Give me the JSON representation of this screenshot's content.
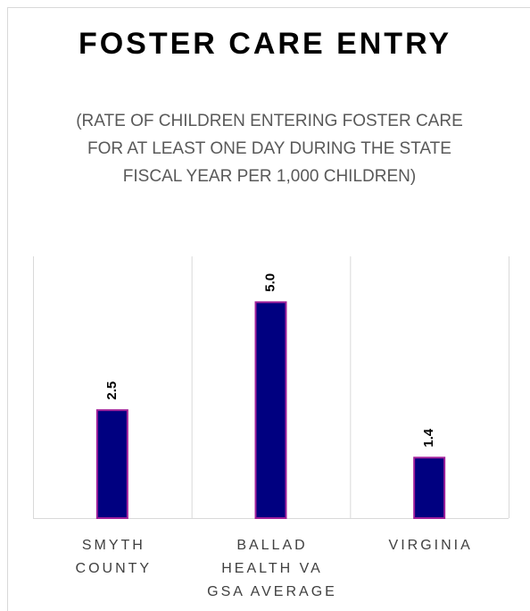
{
  "chart_data": {
    "type": "bar",
    "title": "FOSTER CARE ENTRY",
    "subtitle": "(RATE OF CHILDREN ENTERING FOSTER CARE FOR AT LEAST ONE DAY DURING THE STATE FISCAL YEAR PER 1,000 CHILDREN)",
    "categories": [
      "SMYTH COUNTY",
      "BALLAD HEALTH VA GSA AVERAGE",
      "VIRGINIA"
    ],
    "values": [
      2.5,
      5.0,
      1.4
    ],
    "value_labels": [
      "2.5",
      "5.0",
      "1.4"
    ],
    "color": "#000080",
    "edge_color": "#a0209a",
    "ylim": [
      0,
      6
    ]
  }
}
